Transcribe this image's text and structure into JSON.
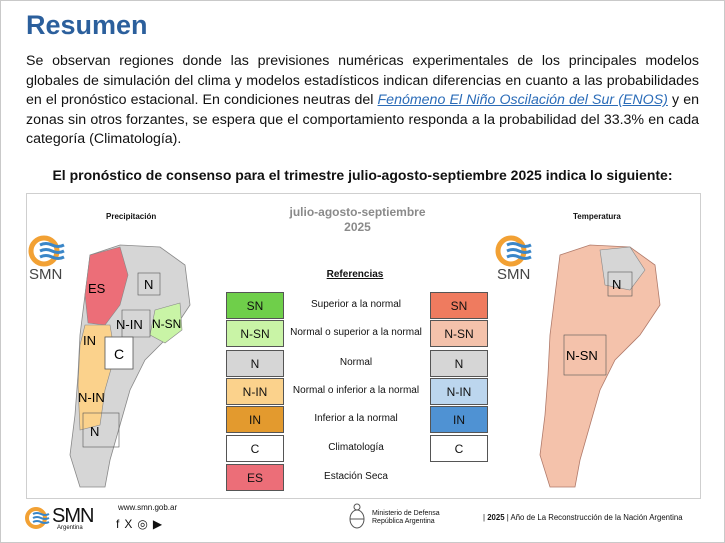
{
  "title": "Resumen",
  "intro": {
    "before_link": "Se observan regiones donde las previsiones numéricas experimentales de los principales modelos globales de simulación del clima y modelos estadísticos indican diferencias en cuanto a las probabilidades en el pronóstico estacional. En condiciones neutras del ",
    "link": "Fenómeno El Niño Oscilación del Sur (ENOS)",
    "after_link": " y en zonas sin otros forzantes, se espera que el comportamiento responda a la probabilidad del 33.3% en cada categoría (Climatología)."
  },
  "subtitle": "El pronóstico de consenso para el trimestre julio-agosto-septiembre 2025 indica lo siguiente:",
  "period": {
    "line1": "julio-agosto-septiembre",
    "line2": "2025"
  },
  "maps": {
    "precip_label": "Precipitación",
    "temp_label": "Temperatura",
    "precip_regions": [
      "ES",
      "N",
      "N-IN",
      "N-SN",
      "IN",
      "C",
      "N-IN",
      "N"
    ],
    "temp_regions": [
      "N",
      "N-SN"
    ]
  },
  "legend": {
    "title": "Referencias",
    "rows": [
      {
        "precip": "SN",
        "label": "Superior a la normal",
        "temp": "SN",
        "pcolor": "#6fcf4a",
        "tcolor": "#ef7b5f"
      },
      {
        "precip": "N-SN",
        "label": "Normal o superior a la normal",
        "temp": "N-SN",
        "pcolor": "#c9f4a6",
        "tcolor": "#f4c2ab"
      },
      {
        "precip": "N",
        "label": "Normal",
        "temp": "N",
        "pcolor": "#d6d6d6",
        "tcolor": "#d6d6d6"
      },
      {
        "precip": "N-IN",
        "label": "Normal o inferior a la normal",
        "temp": "N-IN",
        "pcolor": "#fbd28c",
        "tcolor": "#bcd6ee"
      },
      {
        "precip": "IN",
        "label": "Inferior a la normal",
        "temp": "IN",
        "pcolor": "#e39a2e",
        "tcolor": "#4f92d3"
      },
      {
        "precip": "C",
        "label": "Climatología",
        "temp": "C",
        "pcolor": "#ffffff",
        "tcolor": "#ffffff"
      },
      {
        "precip": "ES",
        "label": "Estación Seca",
        "pcolor": "#ec6e78"
      }
    ]
  },
  "logo": {
    "text": "SMN",
    "sub": "Argentina"
  },
  "footer": {
    "url": "www.smn.gob.ar",
    "ministry_line1": "Ministerio de Defensa",
    "ministry_line2": "República Argentina",
    "year": "2025",
    "year_text": "Año de La Reconstrucción de la Nación Argentina"
  },
  "colors": {
    "title": "#2b5f9c",
    "link": "#2b6cb8",
    "smn_blue": "#3a86c8",
    "smn_orange": "#f2a134"
  }
}
